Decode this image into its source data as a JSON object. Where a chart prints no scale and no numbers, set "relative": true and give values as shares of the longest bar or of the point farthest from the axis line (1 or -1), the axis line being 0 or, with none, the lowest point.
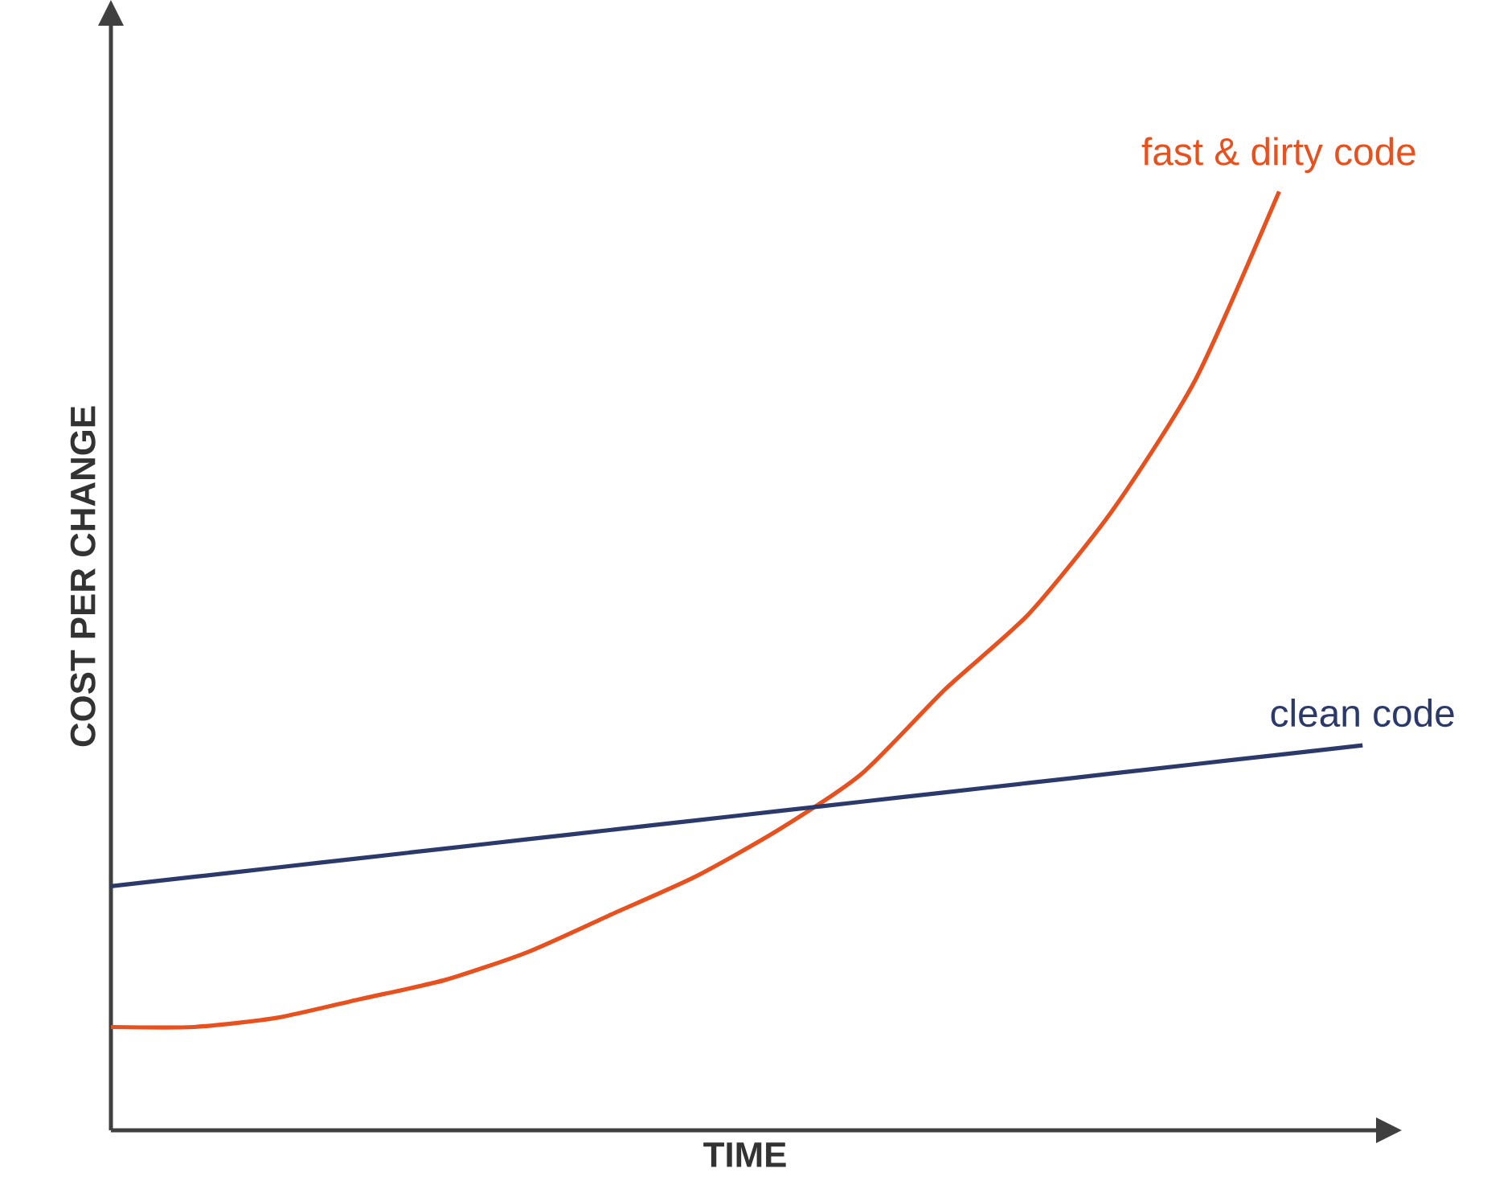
{
  "chart_data": {
    "type": "line",
    "relative": true,
    "xlabel": "TIME",
    "ylabel": "COST PER CHANGE",
    "categories": [
      null,
      null,
      null,
      null,
      null,
      null,
      null,
      null,
      null,
      null,
      null,
      null,
      null,
      null,
      null,
      null
    ],
    "series": [
      {
        "name": "fast & dirty code",
        "color": "#e8501e",
        "values": [
          0.11,
          0.11,
          0.12,
          0.14,
          0.16,
          0.19,
          0.23,
          0.27,
          0.32,
          0.38,
          0.47,
          0.55,
          0.66,
          0.8,
          1,
          null
        ]
      },
      {
        "name": "clean code",
        "color": "#2b3a6b",
        "values": [
          0.26,
          0.27,
          0.28,
          0.29,
          0.3,
          0.31,
          0.32,
          0.33,
          0.34,
          0.35,
          0.36,
          0.37,
          0.38,
          0.39,
          0.4,
          0.41
        ]
      }
    ],
    "tick_labels": false,
    "marker": "none",
    "line_style": "solid"
  }
}
